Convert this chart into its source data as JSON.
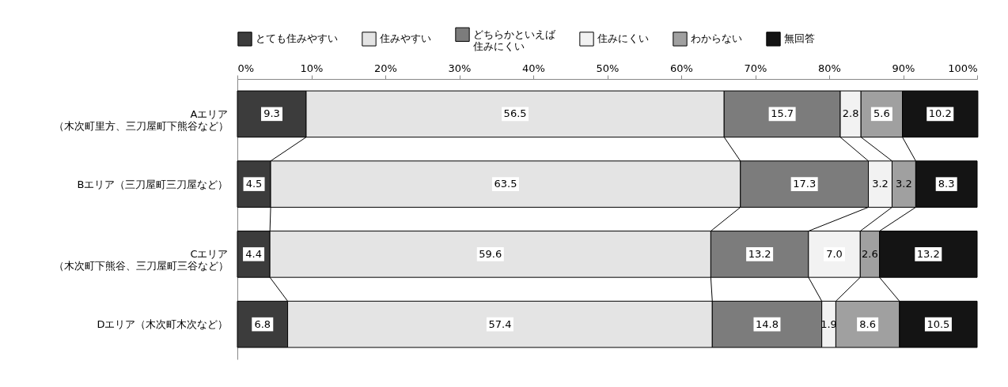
{
  "chart_data": {
    "type": "bar",
    "orientation": "horizontal",
    "stacked": true,
    "legend": "top",
    "grid": false,
    "data_labels": true,
    "categories": [
      "Aエリア（木次町里方、三刀屋町下熊谷など）",
      "Bエリア（三刀屋町三刀屋など）",
      "Cエリア（木次町下熊谷、三刀屋町三谷など）",
      "Dエリア（木次町木次など）"
    ],
    "xlim": [
      0,
      100
    ],
    "xticks": [
      {
        "value": 0,
        "label": "0%"
      },
      {
        "value": 10,
        "label": "10%"
      },
      {
        "value": 20,
        "label": "20%"
      },
      {
        "value": 30,
        "label": "30%"
      },
      {
        "value": 40,
        "label": "40%"
      },
      {
        "value": 50,
        "label": "50%"
      },
      {
        "value": 60,
        "label": "60%"
      },
      {
        "value": 70,
        "label": "70%"
      },
      {
        "value": 80,
        "label": "80%"
      },
      {
        "value": 90,
        "label": "90%"
      },
      {
        "value": 100,
        "label": "100%"
      }
    ],
    "series": [
      {
        "name": "とても住みやすい",
        "color": "#3c3c3c",
        "values": [
          9.3,
          4.5,
          4.4,
          6.8
        ]
      },
      {
        "name": "住みやすい",
        "color": "#e4e4e4",
        "values": [
          56.5,
          63.5,
          59.6,
          57.4
        ]
      },
      {
        "name": "どちらかといえば住みにくい",
        "color": "#7c7c7c",
        "values": [
          15.7,
          17.3,
          13.2,
          14.8
        ]
      },
      {
        "name": "住みにくい",
        "color": "#f2f2f2",
        "values": [
          2.8,
          3.2,
          7.0,
          1.9
        ],
        "value_labels": [
          "2.8",
          "3.2",
          "7.0",
          "1.9"
        ]
      },
      {
        "name": "わからない",
        "color": "#a0a0a0",
        "values": [
          5.6,
          3.2,
          2.6,
          8.6
        ]
      },
      {
        "name": "無回答",
        "color": "#141414",
        "values": [
          10.2,
          8.3,
          13.2,
          10.5
        ]
      }
    ]
  }
}
